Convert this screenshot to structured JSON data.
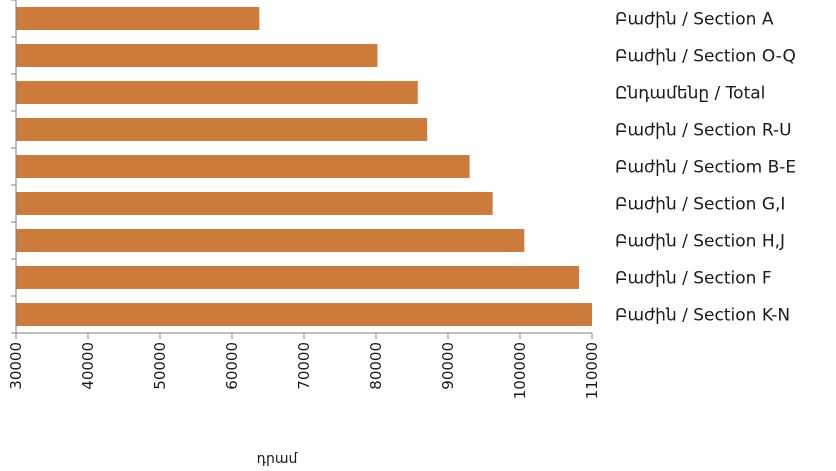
{
  "chart_data": {
    "type": "bar",
    "orientation": "horizontal",
    "categories": [
      "Բաժին /  Section A",
      "Բաժին / Section O-Q",
      "Ընդամենը / Total",
      "Բաժին / Section R-U",
      "Բաժին / Sectiom B-E",
      "Բաժին / Section G,I",
      "Բաժին / Section H,J",
      "Բաժին / Section F",
      "Բաժին / Section K-N"
    ],
    "values": [
      63800,
      80200,
      85800,
      87100,
      93000,
      96200,
      100600,
      108200,
      110000
    ],
    "xlabel": "դրամ",
    "xlim": [
      30000,
      110000
    ],
    "xticks": [
      "30000",
      "40000",
      "50000",
      "60000",
      "70000",
      "80000",
      "90000",
      "100000",
      "110000"
    ],
    "bar_color": "#cd7b3a",
    "axis_color": "#808080",
    "grid": false,
    "legend": "none"
  }
}
